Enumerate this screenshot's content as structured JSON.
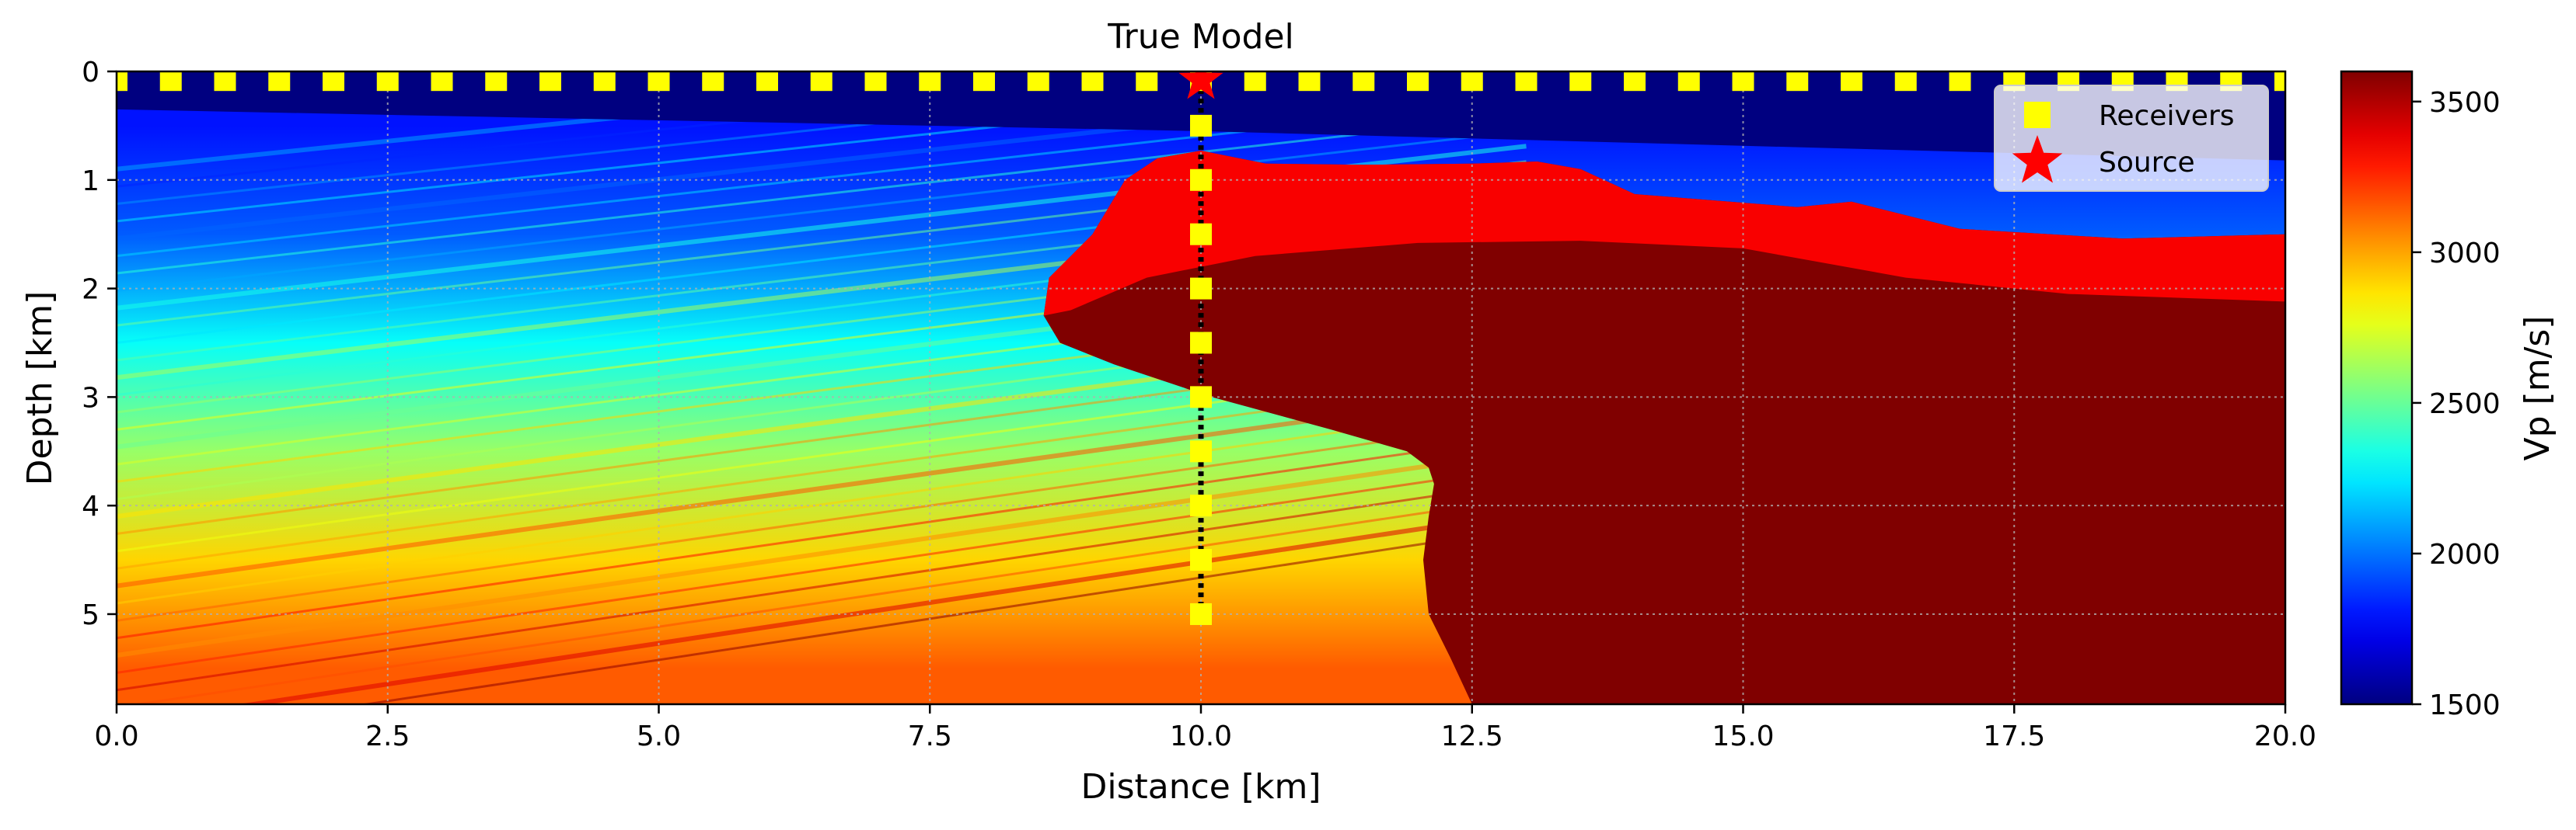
{
  "chart_data": {
    "type": "heatmap",
    "title": "True Model",
    "xlabel": "Distance [km]",
    "ylabel": "Depth [km]",
    "colorbar_label": "Vp [m/s]",
    "colormap": "jet",
    "xlim": [
      0.0,
      20.0
    ],
    "ylim": [
      5.83,
      0
    ],
    "clim": [
      1500,
      3600
    ],
    "xticks": [
      0.0,
      2.5,
      5.0,
      7.5,
      10.0,
      12.5,
      15.0,
      17.5,
      20.0
    ],
    "xtick_labels": [
      "0.0",
      "2.5",
      "5.0",
      "7.5",
      "10.0",
      "12.5",
      "15.0",
      "17.5",
      "20.0"
    ],
    "yticks": [
      0,
      1,
      2,
      3,
      4,
      5
    ],
    "ytick_labels": [
      "0",
      "1",
      "2",
      "3",
      "4",
      "5"
    ],
    "colorbar_ticks": [
      1500,
      2000,
      2500,
      3000,
      3500
    ],
    "colorbar_tick_labels": [
      "1500",
      "2000",
      "2500",
      "3000",
      "3500"
    ],
    "grid": true,
    "legend_position": "top-right",
    "legend": [
      {
        "label": "Receivers",
        "marker": "square",
        "color": "#ffff00"
      },
      {
        "label": "Source",
        "marker": "star",
        "color": "#ff0000"
      }
    ],
    "surface_receivers": {
      "depth_km": 0.08,
      "x_start_km": 0.0,
      "x_end_km": 20.0,
      "spacing_km": 0.5
    },
    "well_receivers": {
      "x_km": 10.0,
      "depths_km": [
        0.5,
        1.0,
        1.5,
        2.0,
        2.5,
        3.0,
        3.5,
        4.0,
        4.5,
        5.0
      ]
    },
    "source": {
      "x_km": 10.0,
      "depth_km": 0.08
    },
    "well_line": {
      "x_km": 10.0,
      "from_depth_km": 0.08,
      "to_depth_km": 5.0
    },
    "model": {
      "water_layer": {
        "velocity": 1500,
        "bottom_depth_km": [
          [
            0,
            0.35
          ],
          [
            10,
            0.55
          ],
          [
            20,
            0.82
          ]
        ]
      },
      "sediment_gradient_stops": [
        {
          "depth_km": 0.5,
          "velocity": 1800
        },
        {
          "depth_km": 1.5,
          "velocity": 1950
        },
        {
          "depth_km": 2.5,
          "velocity": 2300
        },
        {
          "depth_km": 3.5,
          "velocity": 2600
        },
        {
          "depth_km": 4.5,
          "velocity": 2900
        },
        {
          "depth_km": 5.5,
          "velocity": 3150
        }
      ],
      "salt_velocity": 3600,
      "carapace_velocity": 3350,
      "salt_top_km": [
        [
          10.0,
          0.73
        ],
        [
          10.6,
          0.85
        ],
        [
          11.5,
          0.86
        ],
        [
          12.5,
          0.85
        ],
        [
          13.1,
          0.83
        ],
        [
          13.5,
          0.9
        ],
        [
          14.0,
          1.13
        ],
        [
          15.5,
          1.25
        ],
        [
          16.0,
          1.2
        ],
        [
          17.0,
          1.45
        ],
        [
          18.5,
          1.54
        ],
        [
          20.0,
          1.5
        ]
      ],
      "salt_flank_km": [
        [
          9.6,
          0.8
        ],
        [
          9.3,
          1.0
        ],
        [
          9.0,
          1.5
        ],
        [
          8.8,
          1.7
        ],
        [
          8.6,
          1.9
        ],
        [
          8.55,
          2.25
        ],
        [
          8.7,
          2.5
        ],
        [
          9.2,
          2.7
        ],
        [
          9.8,
          2.9
        ],
        [
          10.1,
          3.0
        ],
        [
          11.2,
          3.3
        ],
        [
          11.9,
          3.5
        ],
        [
          12.1,
          3.65
        ],
        [
          12.15,
          3.8
        ],
        [
          12.1,
          4.1
        ],
        [
          12.05,
          4.5
        ],
        [
          12.1,
          5.0
        ],
        [
          12.3,
          5.4
        ],
        [
          12.5,
          5.83
        ]
      ],
      "carapace_base_km": [
        [
          8.8,
          2.2
        ],
        [
          9.5,
          1.9
        ],
        [
          10.5,
          1.7
        ],
        [
          12.0,
          1.58
        ],
        [
          13.5,
          1.56
        ],
        [
          15.0,
          1.63
        ],
        [
          16.5,
          1.9
        ],
        [
          18.0,
          2.05
        ],
        [
          20.0,
          2.12
        ]
      ]
    }
  }
}
